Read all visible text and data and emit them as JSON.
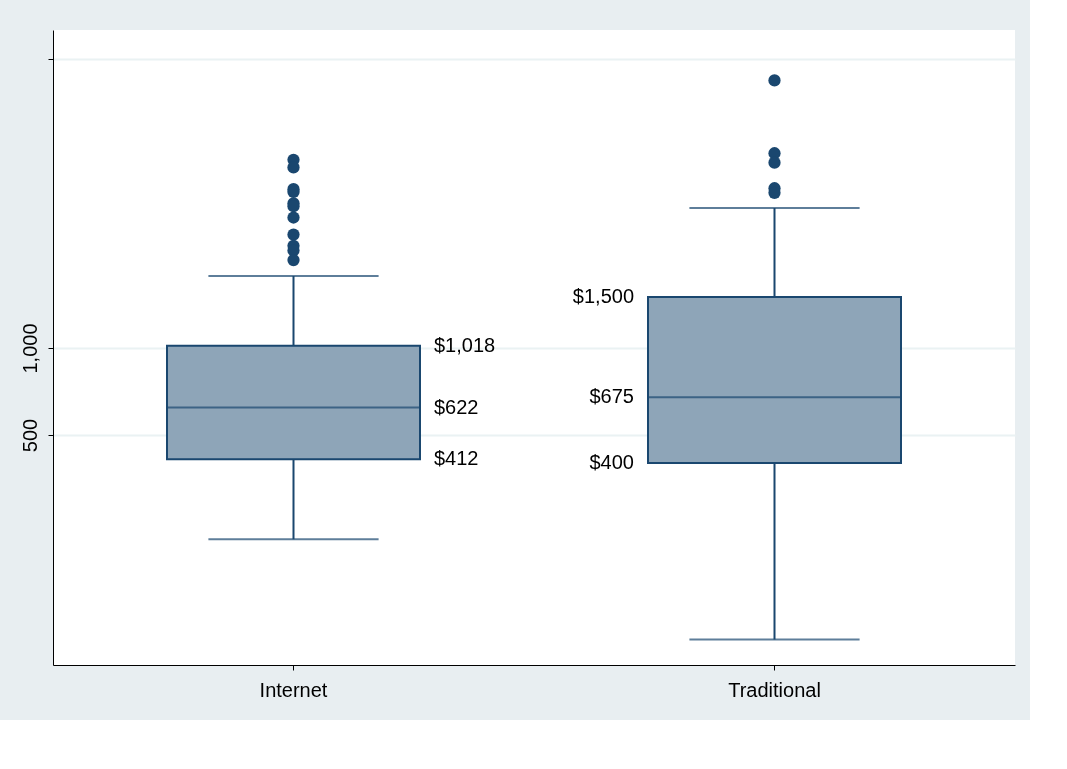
{
  "chart_data": {
    "type": "box",
    "categories": [
      "Internet",
      "Traditional"
    ],
    "boxes": [
      {
        "low": 218,
        "q1": 412,
        "median": 622,
        "q3": 1018,
        "high": 1773,
        "outliers": [
          4479,
          4217,
          3546,
          3466,
          3167,
          3095,
          2828,
          2469,
          2257,
          2174,
          2015
        ]
      },
      {
        "low": 98,
        "q1": 400,
        "median": 675,
        "q3": 1500,
        "high": 3050,
        "outliers": [
          8433,
          4721,
          4378,
          3572,
          3442
        ]
      }
    ],
    "color": "#8ea5b8",
    "log": "y",
    "ylim": [
      80,
      12600
    ],
    "yticks": [
      500,
      {
        "value": 1000,
        "label": "1,000"
      },
      {
        "value": 10000,
        "label": null
      }
    ],
    "grid": "y",
    "annotations": [
      "$1,018",
      "$622",
      "$412",
      "$1,500",
      "$675",
      "$400"
    ]
  }
}
